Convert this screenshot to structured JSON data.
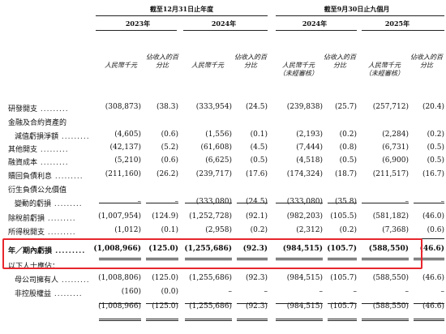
{
  "header": {
    "period_year": "截至12月31日止年度",
    "period_nine": "截至9月30日止九個月",
    "years": [
      "2023年",
      "2024年",
      "2024年",
      "2025年"
    ],
    "col_amount": "人民幣千元",
    "col_pct": "佔收入的百分比",
    "unaudited": "（未經審核）"
  },
  "rows": [
    {
      "label": "研發開支",
      "dots": true,
      "values": [
        "(308,873)",
        "(38.3)",
        "(333,954)",
        "(24.5)",
        "(239,838)",
        "(25.7)",
        "(257,712)",
        "(20.4)"
      ]
    },
    {
      "label": "金融及合約資產的",
      "dots": false,
      "values": [
        "",
        "",
        "",
        "",
        "",
        "",
        "",
        ""
      ]
    },
    {
      "label": "減值虧損淨額",
      "dots": true,
      "indent": true,
      "values": [
        "(4,605)",
        "(0.6)",
        "(1,556)",
        "(0.1)",
        "(2,193)",
        "(0.2)",
        "(2,284)",
        "(0.2)"
      ]
    },
    {
      "label": "其他開支",
      "dots": true,
      "values": [
        "(42,137)",
        "(5.2)",
        "(61,608)",
        "(4.5)",
        "(7,444)",
        "(0.8)",
        "(6,731)",
        "(0.5)"
      ]
    },
    {
      "label": "融資成本",
      "dots": true,
      "values": [
        "(5,210)",
        "(0.6)",
        "(6,625)",
        "(0.5)",
        "(4,518)",
        "(0.5)",
        "(6,900)",
        "(0.5)"
      ]
    },
    {
      "label": "贖回負債利息",
      "dots": true,
      "values": [
        "(211,160)",
        "(26.2)",
        "(239,717)",
        "(17.6)",
        "(174,324)",
        "(18.7)",
        "(211,517)",
        "(16.7)"
      ]
    },
    {
      "label": "衍生負債公允價值",
      "dots": false,
      "values": [
        "",
        "",
        "",
        "",
        "",
        "",
        "",
        ""
      ]
    },
    {
      "label": "變動的虧損",
      "dots": true,
      "indent": true,
      "values": [
        "–",
        "–",
        "(333,080)",
        "(24.5)",
        "(333,080)",
        "(35.8)",
        "–",
        "–"
      ]
    },
    {
      "label": "除稅前虧損",
      "dots": true,
      "values": [
        "(1,007,954)",
        "(124.9)",
        "(1,252,728)",
        "(92.1)",
        "(982,203)",
        "(105.5)",
        "(581,182)",
        "(46.0)"
      ]
    },
    {
      "label": "所得稅開支",
      "dots": true,
      "values": [
        "(1,012)",
        "(0.1)",
        "(2,958)",
        "(0.2)",
        "(2,312)",
        "(0.2)",
        "(7,368)",
        "(0.6)"
      ]
    },
    {
      "label": "年／期內虧損",
      "dots": true,
      "bold": true,
      "values": [
        "(1,008,966)",
        "(125.0)",
        "(1,255,686)",
        "(92.3)",
        "(984,515)",
        "(105.7)",
        "(588,550)",
        "(46.6)"
      ]
    },
    {
      "label": "以下人士應佔：",
      "dots": false,
      "values": [
        "",
        "",
        "",
        "",
        "",
        "",
        "",
        ""
      ]
    },
    {
      "label": "母公司擁有人",
      "dots": true,
      "indent": true,
      "values": [
        "(1,008,806)",
        "(125.0)",
        "(1,255,686)",
        "(92.3)",
        "(984,515)",
        "(105.7)",
        "(588,550)",
        "(46.6)"
      ]
    },
    {
      "label": "非控股權益",
      "dots": true,
      "indent": true,
      "values": [
        "(160)",
        "(0.0)",
        "–",
        "–",
        "–",
        "–",
        "–",
        "–"
      ]
    },
    {
      "label": "",
      "dots": false,
      "values": [
        "(1,008,966)",
        "(125.0)",
        "(1,255,686)",
        "(92.3)",
        "(984,515)",
        "(105.7)",
        "(588,550)",
        "(46.6)"
      ]
    }
  ]
}
